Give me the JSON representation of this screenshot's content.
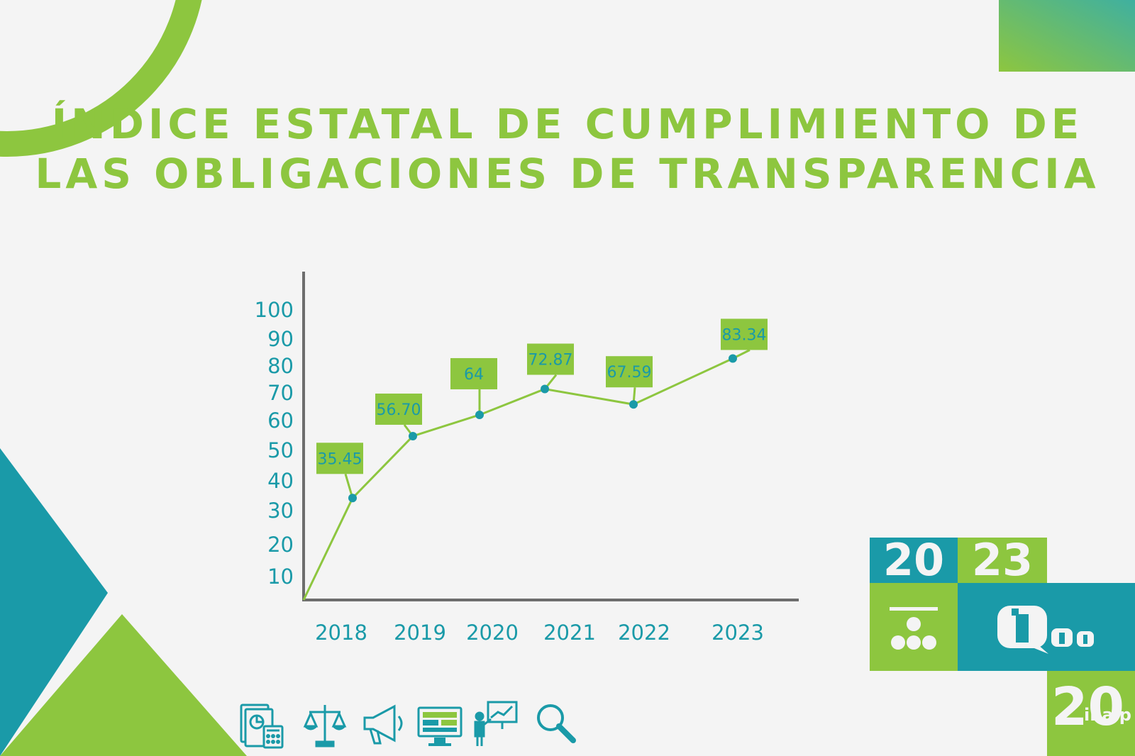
{
  "title": {
    "line1": "Índice estatal de cumplimiento de",
    "line2": "las obligaciones de transparencia"
  },
  "colors": {
    "accent_green": "#8dc63f",
    "accent_teal": "#1a9aa8",
    "axis": "#6d6d6d",
    "background": "#f4f4f4"
  },
  "badge": {
    "year_part1": "20",
    "year_part2": "23",
    "logo_text": "inaip",
    "anniversary": "20"
  },
  "icons": [
    "accounting-icon",
    "scales-justice-icon",
    "megaphone-icon",
    "monitor-dashboard-icon",
    "presenter-chart-icon",
    "magnifier-icon"
  ],
  "chart_data": {
    "type": "line",
    "title": "Índice estatal de cumplimiento de las obligaciones de transparencia",
    "xlabel": "",
    "ylabel": "",
    "categories": [
      "2018",
      "2019",
      "2020",
      "2021",
      "2022",
      "2023"
    ],
    "series": [
      {
        "values": [
          35.45,
          56.7,
          64,
          72.87,
          67.59,
          83.34
        ],
        "labels": [
          "35.45",
          "56.70",
          "64",
          "72.87",
          "67.59",
          "83.34"
        ]
      }
    ],
    "y_ticks": [
      "10",
      "20",
      "30",
      "40",
      "50",
      "60",
      "70",
      "80",
      "90",
      "100"
    ],
    "ylim": [
      0,
      100
    ],
    "grid": false,
    "legend": "none"
  }
}
